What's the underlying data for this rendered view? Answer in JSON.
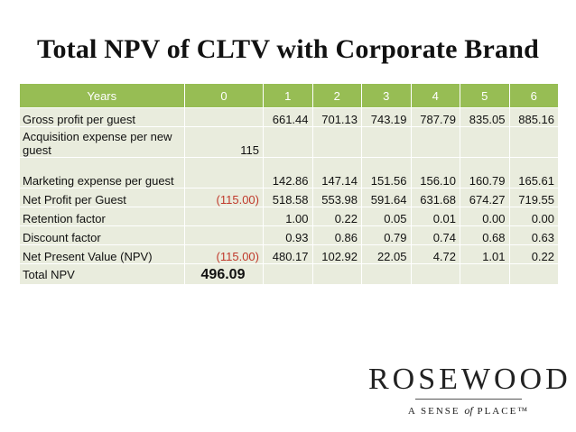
{
  "title": "Total NPV of CLTV with Corporate Brand",
  "table": {
    "header": [
      "Years",
      "0",
      "1",
      "2",
      "3",
      "4",
      "5",
      "6"
    ],
    "rows": [
      {
        "label": "Gross profit per guest",
        "cells": [
          "",
          "661.44",
          "701.13",
          "743.19",
          "787.79",
          "835.05",
          "885.16"
        ]
      },
      {
        "label": "Acquisition expense per new guest",
        "cells": [
          "115",
          "",
          "",
          "",
          "",
          "",
          ""
        ]
      },
      {
        "label": "Marketing expense per guest",
        "cells": [
          "",
          "142.86",
          "147.14",
          "151.56",
          "156.10",
          "160.79",
          "165.61"
        ]
      },
      {
        "label": "Net Profit per Guest",
        "cells": [
          "(115.00)",
          "518.58",
          "553.98",
          "591.64",
          "631.68",
          "674.27",
          "719.55"
        ]
      },
      {
        "label": "Retention factor",
        "cells": [
          "",
          "1.00",
          "0.22",
          "0.05",
          "0.01",
          "0.00",
          "0.00"
        ]
      },
      {
        "label": "Discount factor",
        "cells": [
          "",
          "0.93",
          "0.86",
          "0.79",
          "0.74",
          "0.68",
          "0.63"
        ]
      },
      {
        "label": "Net Present Value (NPV)",
        "cells": [
          "(115.00)",
          "480.17",
          "102.92",
          "22.05",
          "4.72",
          "1.01",
          "0.22"
        ]
      },
      {
        "label": "Total NPV",
        "cells": [
          "496.09",
          "",
          "",
          "",
          "",
          "",
          ""
        ]
      }
    ]
  },
  "colors": {
    "header_bg": "#97bd54",
    "row_bg": "#e9ecdd",
    "negative": "#c0392b"
  },
  "logo": {
    "name": "ROSEWOOD",
    "tagline_a": "A SENSE",
    "tagline_of": "of",
    "tagline_b": "PLACE™"
  }
}
